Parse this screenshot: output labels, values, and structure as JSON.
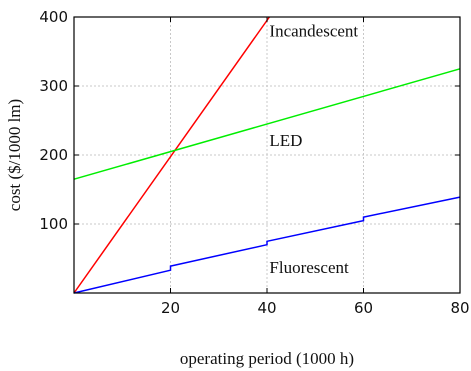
{
  "chart_data": {
    "type": "line",
    "xlabel": "operating period (1000 h)",
    "ylabel": "cost ($/1000 lm)",
    "xlim": [
      0,
      80
    ],
    "ylim": [
      0,
      400
    ],
    "xticks": [
      20,
      40,
      60,
      80
    ],
    "yticks": [
      100,
      200,
      300,
      400
    ],
    "grid": true,
    "series": [
      {
        "name": "Incandescent",
        "color": "#ff0000",
        "x": [
          0,
          40.5
        ],
        "y": [
          0,
          400
        ]
      },
      {
        "name": "LED",
        "color": "#00ee00",
        "x": [
          0,
          80
        ],
        "y": [
          165,
          325
        ]
      },
      {
        "name": "Fluorescent",
        "color": "#0000ff",
        "x": [
          0,
          20,
          20,
          40,
          40,
          60,
          60,
          80
        ],
        "y": [
          0,
          33,
          39,
          70,
          75,
          105,
          110,
          139
        ]
      }
    ],
    "annotations": [
      {
        "text": "Incandescent",
        "x": 40.5,
        "y": 372
      },
      {
        "text": "LED",
        "x": 40.5,
        "y": 213
      },
      {
        "text": "Fluorescent",
        "x": 40.5,
        "y": 29
      }
    ]
  }
}
